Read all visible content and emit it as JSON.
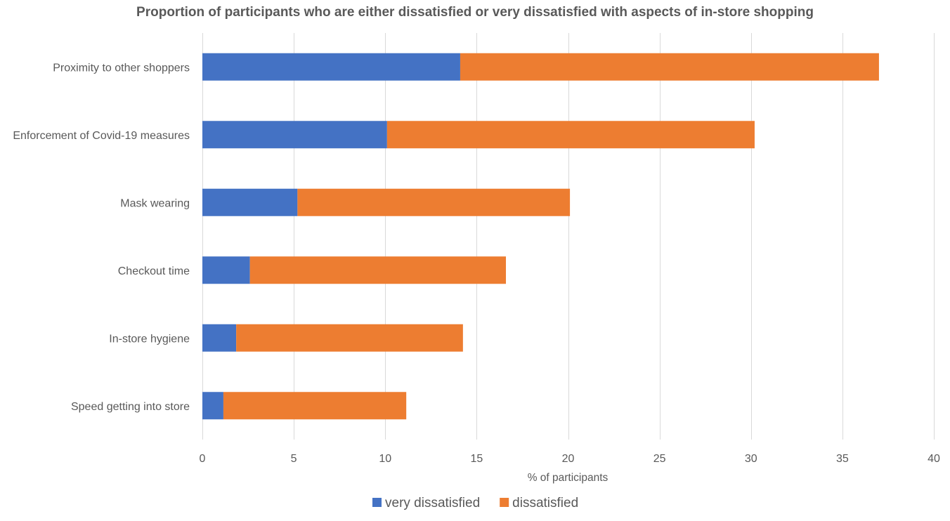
{
  "chart_data": {
    "type": "bar",
    "orientation": "horizontal",
    "stacked": true,
    "title": "Proportion of participants who are either dissatisfied or very dissatisfied with aspects of in-store shopping",
    "xlabel": "% of participants",
    "ylabel": "",
    "xlim": [
      0,
      40
    ],
    "xticks": [
      0,
      5,
      10,
      15,
      20,
      25,
      30,
      35,
      40
    ],
    "grid": true,
    "legend_position": "bottom",
    "categories": [
      "Proximity to other shoppers",
      "Enforcement of Covid-19 measures",
      "Mask wearing",
      "Checkout time",
      "In-store hygiene",
      "Speed getting into store"
    ],
    "series": [
      {
        "name": "very dissatisfied",
        "color": "#4472C4",
        "values": [
          14.1,
          10.1,
          5.2,
          2.6,
          1.85,
          1.15
        ]
      },
      {
        "name": "dissatisfied",
        "color": "#ED7D31",
        "values": [
          22.9,
          20.1,
          14.9,
          14.0,
          12.4,
          10.0
        ]
      }
    ]
  }
}
